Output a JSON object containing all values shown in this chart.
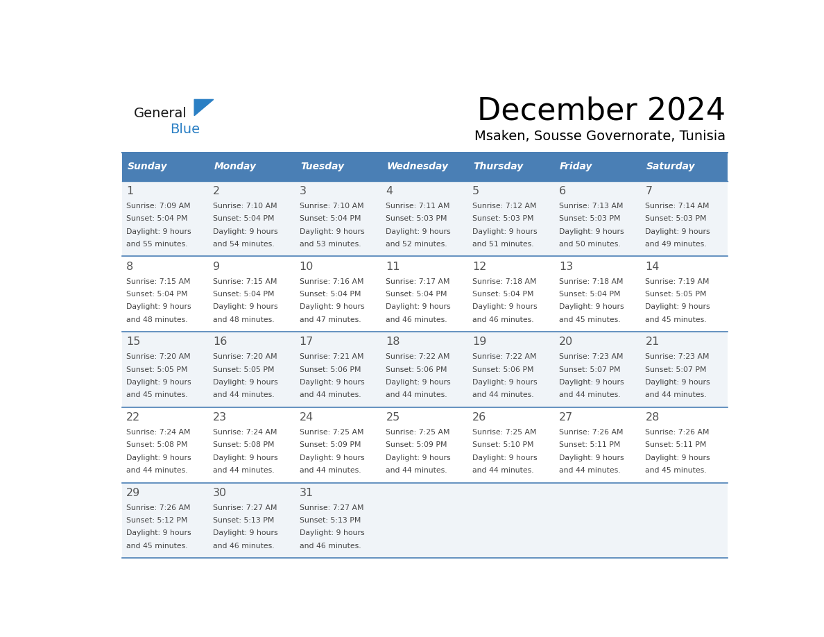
{
  "title": "December 2024",
  "subtitle": "Msaken, Sousse Governorate, Tunisia",
  "days_of_week": [
    "Sunday",
    "Monday",
    "Tuesday",
    "Wednesday",
    "Thursday",
    "Friday",
    "Saturday"
  ],
  "header_bg": "#4a7fb5",
  "header_text": "#ffffff",
  "cell_bg_odd": "#f0f4f8",
  "cell_bg_even": "#ffffff",
  "grid_line": "#4a7fb5",
  "day_num_color": "#555555",
  "text_color": "#444444",
  "logo_general_color": "#1a1a1a",
  "logo_blue_color": "#2a7fc4",
  "calendar_data": [
    [
      {
        "day": 1,
        "sunrise": "7:09 AM",
        "sunset": "5:04 PM",
        "daylight_line1": "Daylight: 9 hours",
        "daylight_line2": "and 55 minutes."
      },
      {
        "day": 2,
        "sunrise": "7:10 AM",
        "sunset": "5:04 PM",
        "daylight_line1": "Daylight: 9 hours",
        "daylight_line2": "and 54 minutes."
      },
      {
        "day": 3,
        "sunrise": "7:10 AM",
        "sunset": "5:04 PM",
        "daylight_line1": "Daylight: 9 hours",
        "daylight_line2": "and 53 minutes."
      },
      {
        "day": 4,
        "sunrise": "7:11 AM",
        "sunset": "5:03 PM",
        "daylight_line1": "Daylight: 9 hours",
        "daylight_line2": "and 52 minutes."
      },
      {
        "day": 5,
        "sunrise": "7:12 AM",
        "sunset": "5:03 PM",
        "daylight_line1": "Daylight: 9 hours",
        "daylight_line2": "and 51 minutes."
      },
      {
        "day": 6,
        "sunrise": "7:13 AM",
        "sunset": "5:03 PM",
        "daylight_line1": "Daylight: 9 hours",
        "daylight_line2": "and 50 minutes."
      },
      {
        "day": 7,
        "sunrise": "7:14 AM",
        "sunset": "5:03 PM",
        "daylight_line1": "Daylight: 9 hours",
        "daylight_line2": "and 49 minutes."
      }
    ],
    [
      {
        "day": 8,
        "sunrise": "7:15 AM",
        "sunset": "5:04 PM",
        "daylight_line1": "Daylight: 9 hours",
        "daylight_line2": "and 48 minutes."
      },
      {
        "day": 9,
        "sunrise": "7:15 AM",
        "sunset": "5:04 PM",
        "daylight_line1": "Daylight: 9 hours",
        "daylight_line2": "and 48 minutes."
      },
      {
        "day": 10,
        "sunrise": "7:16 AM",
        "sunset": "5:04 PM",
        "daylight_line1": "Daylight: 9 hours",
        "daylight_line2": "and 47 minutes."
      },
      {
        "day": 11,
        "sunrise": "7:17 AM",
        "sunset": "5:04 PM",
        "daylight_line1": "Daylight: 9 hours",
        "daylight_line2": "and 46 minutes."
      },
      {
        "day": 12,
        "sunrise": "7:18 AM",
        "sunset": "5:04 PM",
        "daylight_line1": "Daylight: 9 hours",
        "daylight_line2": "and 46 minutes."
      },
      {
        "day": 13,
        "sunrise": "7:18 AM",
        "sunset": "5:04 PM",
        "daylight_line1": "Daylight: 9 hours",
        "daylight_line2": "and 45 minutes."
      },
      {
        "day": 14,
        "sunrise": "7:19 AM",
        "sunset": "5:05 PM",
        "daylight_line1": "Daylight: 9 hours",
        "daylight_line2": "and 45 minutes."
      }
    ],
    [
      {
        "day": 15,
        "sunrise": "7:20 AM",
        "sunset": "5:05 PM",
        "daylight_line1": "Daylight: 9 hours",
        "daylight_line2": "and 45 minutes."
      },
      {
        "day": 16,
        "sunrise": "7:20 AM",
        "sunset": "5:05 PM",
        "daylight_line1": "Daylight: 9 hours",
        "daylight_line2": "and 44 minutes."
      },
      {
        "day": 17,
        "sunrise": "7:21 AM",
        "sunset": "5:06 PM",
        "daylight_line1": "Daylight: 9 hours",
        "daylight_line2": "and 44 minutes."
      },
      {
        "day": 18,
        "sunrise": "7:22 AM",
        "sunset": "5:06 PM",
        "daylight_line1": "Daylight: 9 hours",
        "daylight_line2": "and 44 minutes."
      },
      {
        "day": 19,
        "sunrise": "7:22 AM",
        "sunset": "5:06 PM",
        "daylight_line1": "Daylight: 9 hours",
        "daylight_line2": "and 44 minutes."
      },
      {
        "day": 20,
        "sunrise": "7:23 AM",
        "sunset": "5:07 PM",
        "daylight_line1": "Daylight: 9 hours",
        "daylight_line2": "and 44 minutes."
      },
      {
        "day": 21,
        "sunrise": "7:23 AM",
        "sunset": "5:07 PM",
        "daylight_line1": "Daylight: 9 hours",
        "daylight_line2": "and 44 minutes."
      }
    ],
    [
      {
        "day": 22,
        "sunrise": "7:24 AM",
        "sunset": "5:08 PM",
        "daylight_line1": "Daylight: 9 hours",
        "daylight_line2": "and 44 minutes."
      },
      {
        "day": 23,
        "sunrise": "7:24 AM",
        "sunset": "5:08 PM",
        "daylight_line1": "Daylight: 9 hours",
        "daylight_line2": "and 44 minutes."
      },
      {
        "day": 24,
        "sunrise": "7:25 AM",
        "sunset": "5:09 PM",
        "daylight_line1": "Daylight: 9 hours",
        "daylight_line2": "and 44 minutes."
      },
      {
        "day": 25,
        "sunrise": "7:25 AM",
        "sunset": "5:09 PM",
        "daylight_line1": "Daylight: 9 hours",
        "daylight_line2": "and 44 minutes."
      },
      {
        "day": 26,
        "sunrise": "7:25 AM",
        "sunset": "5:10 PM",
        "daylight_line1": "Daylight: 9 hours",
        "daylight_line2": "and 44 minutes."
      },
      {
        "day": 27,
        "sunrise": "7:26 AM",
        "sunset": "5:11 PM",
        "daylight_line1": "Daylight: 9 hours",
        "daylight_line2": "and 44 minutes."
      },
      {
        "day": 28,
        "sunrise": "7:26 AM",
        "sunset": "5:11 PM",
        "daylight_line1": "Daylight: 9 hours",
        "daylight_line2": "and 45 minutes."
      }
    ],
    [
      {
        "day": 29,
        "sunrise": "7:26 AM",
        "sunset": "5:12 PM",
        "daylight_line1": "Daylight: 9 hours",
        "daylight_line2": "and 45 minutes."
      },
      {
        "day": 30,
        "sunrise": "7:27 AM",
        "sunset": "5:13 PM",
        "daylight_line1": "Daylight: 9 hours",
        "daylight_line2": "and 46 minutes."
      },
      {
        "day": 31,
        "sunrise": "7:27 AM",
        "sunset": "5:13 PM",
        "daylight_line1": "Daylight: 9 hours",
        "daylight_line2": "and 46 minutes."
      },
      null,
      null,
      null,
      null
    ]
  ]
}
